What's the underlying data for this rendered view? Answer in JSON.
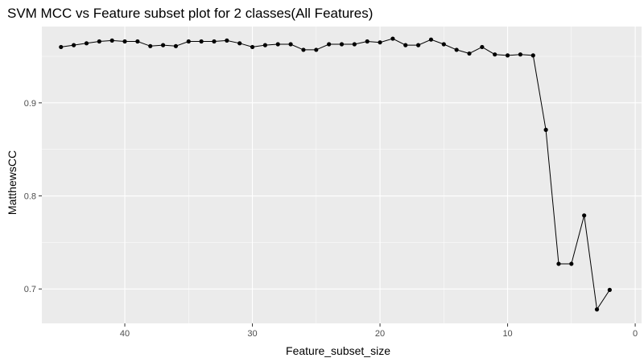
{
  "chart_data": {
    "type": "line",
    "title": "SVM MCC vs Feature subset plot for 2 classes(All Features)",
    "xlabel": "Feature_subset_size",
    "ylabel": "MatthewsCC",
    "xlim": [
      46.5,
      -0.5
    ],
    "ylim": [
      0.663,
      0.982
    ],
    "x_ticks": [
      40,
      30,
      20,
      10,
      0
    ],
    "y_ticks": [
      0.7,
      0.8,
      0.9
    ],
    "x_tick_labels": [
      "40",
      "30",
      "20",
      "10",
      "0"
    ],
    "y_tick_labels": [
      "0.7",
      "0.8",
      "0.9"
    ],
    "grid": true,
    "colors": {
      "panel": "#ebebeb",
      "grid_major": "#ffffff",
      "line": "#000000",
      "point": "#000000"
    },
    "series": [
      {
        "x": [
          45,
          44,
          43,
          42,
          41,
          40,
          39,
          38,
          37,
          36,
          35,
          34,
          33,
          32,
          31,
          30,
          29,
          28,
          27,
          26,
          25,
          24,
          23,
          22,
          21,
          20,
          19,
          18,
          17,
          16,
          15,
          14,
          13,
          12,
          11,
          10,
          9,
          8,
          7,
          6,
          5,
          4,
          3,
          2
        ],
        "values": [
          0.96,
          0.962,
          0.964,
          0.966,
          0.967,
          0.966,
          0.966,
          0.961,
          0.962,
          0.961,
          0.966,
          0.966,
          0.966,
          0.967,
          0.964,
          0.96,
          0.962,
          0.963,
          0.963,
          0.957,
          0.957,
          0.963,
          0.963,
          0.963,
          0.966,
          0.965,
          0.969,
          0.962,
          0.962,
          0.968,
          0.963,
          0.957,
          0.953,
          0.96,
          0.952,
          0.951,
          0.952,
          0.951,
          0.871,
          0.727,
          0.727,
          0.779,
          0.678,
          0.699
        ]
      }
    ]
  }
}
